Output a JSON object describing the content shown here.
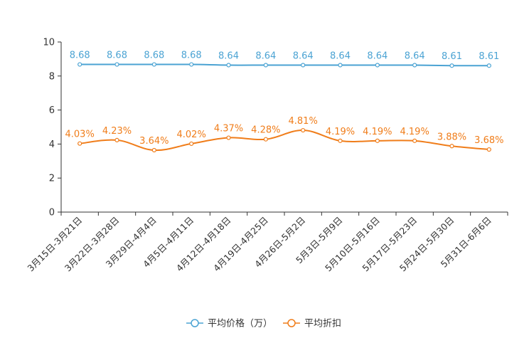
{
  "chart_data": {
    "type": "line",
    "categories": [
      "3月15日-3月21日",
      "3月22日-3月28日",
      "3月29日-4月4日",
      "4月5日-4月11日",
      "4月12日-4月18日",
      "4月19日-4月25日",
      "4月26日-5月2日",
      "5月3日-5月9日",
      "5月10日-5月16日",
      "5月17日-5月23日",
      "5月24日-5月30日",
      "5月31日-6月6日"
    ],
    "ylim": [
      0,
      10
    ],
    "yticks": [
      0,
      2,
      4,
      6,
      8,
      10
    ],
    "ytick_labels": [
      "0",
      "2",
      "4",
      "6",
      "8",
      "10"
    ],
    "series": [
      {
        "name": "平均价格（万）",
        "color": "#4ba3d3",
        "values": [
          8.68,
          8.68,
          8.68,
          8.68,
          8.64,
          8.64,
          8.64,
          8.64,
          8.64,
          8.64,
          8.61,
          8.61
        ],
        "labels": [
          "8.68",
          "8.68",
          "8.68",
          "8.68",
          "8.64",
          "8.64",
          "8.64",
          "8.64",
          "8.64",
          "8.64",
          "8.61",
          "8.61"
        ]
      },
      {
        "name": "平均折扣",
        "color": "#f07d1a",
        "values": [
          4.03,
          4.23,
          3.64,
          4.02,
          4.37,
          4.28,
          4.81,
          4.19,
          4.19,
          4.19,
          3.88,
          3.68
        ],
        "labels": [
          "4.03%",
          "4.23%",
          "3.64%",
          "4.02%",
          "4.37%",
          "4.28%",
          "4.81%",
          "4.19%",
          "4.19%",
          "4.19%",
          "3.88%",
          "3.68%"
        ]
      }
    ],
    "legend_position": "bottom-center"
  }
}
